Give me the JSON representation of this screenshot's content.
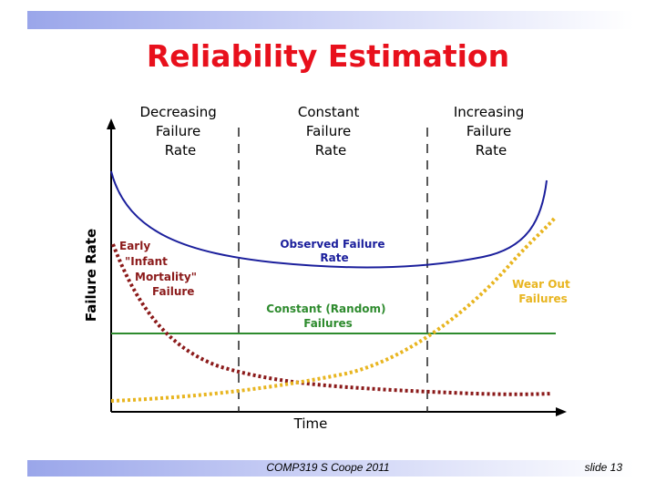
{
  "slide": {
    "title": "Reliability Estimation",
    "footer_center": "COMP319 S Coope 2011",
    "footer_right": "slide 13"
  },
  "diagram": {
    "y_axis_label": "Failure Rate",
    "x_axis_label": "Time",
    "regions": [
      {
        "lines": [
          "Decreasing",
          "Failure",
          "Rate"
        ]
      },
      {
        "lines": [
          "Constant",
          "Failure",
          "Rate"
        ]
      },
      {
        "lines": [
          "Increasing",
          "Failure",
          "Rate"
        ]
      }
    ],
    "curves": {
      "observed": {
        "lines": [
          "Observed Failure",
          "Rate"
        ],
        "color": "#1b1f9c"
      },
      "constant": {
        "lines": [
          "Constant (Random)",
          "Failures"
        ],
        "color": "#2e8b2e"
      },
      "early": {
        "lines": [
          "Early",
          "\"Infant",
          "Mortality\"",
          "Failure"
        ],
        "color": "#8b1a1a"
      },
      "wearout": {
        "lines": [
          "Wear Out",
          "Failures"
        ],
        "color": "#e8b520"
      }
    },
    "title_color": "#e8101c"
  }
}
